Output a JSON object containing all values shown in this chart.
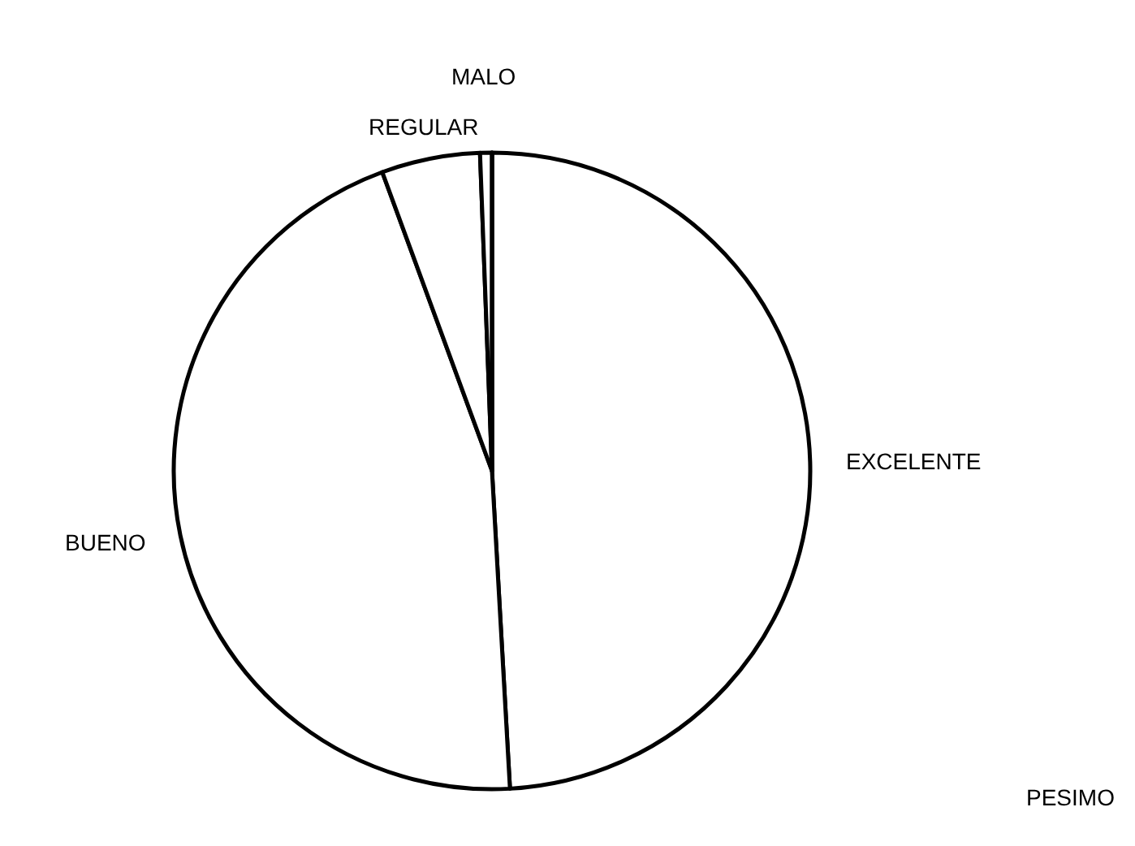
{
  "chart_data": {
    "type": "pie",
    "categories": [
      "EXCELENTE",
      "BUENO",
      "REGULAR",
      "MALO",
      "PESIMO"
    ],
    "values": [
      49.1,
      45.3,
      5.0,
      0.6,
      0
    ],
    "colors": [
      "#ffffff",
      "#ffffff",
      "#ffffff",
      "#ffffff",
      "#ffffff"
    ],
    "legend": false
  }
}
